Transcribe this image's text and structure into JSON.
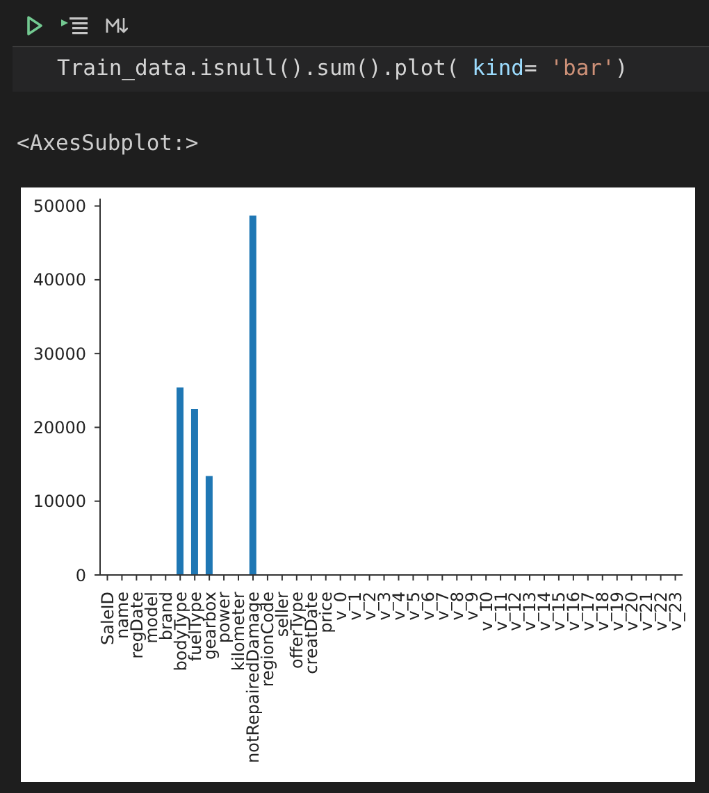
{
  "chart_data": {
    "type": "bar",
    "categories": [
      "SaleID",
      "name",
      "regDate",
      "model",
      "brand",
      "bodyType",
      "fuelType",
      "gearbox",
      "power",
      "kilometer",
      "notRepairedDamage",
      "regionCode",
      "seller",
      "offerType",
      "creatDate",
      "price",
      "v_0",
      "v_1",
      "v_2",
      "v_3",
      "v_4",
      "v_5",
      "v_6",
      "v_7",
      "v_8",
      "v_9",
      "v_10",
      "v_11",
      "v_12",
      "v_13",
      "v_14",
      "v_15",
      "v_16",
      "v_17",
      "v_18",
      "v_19",
      "v_20",
      "v_21",
      "v_22",
      "v_23"
    ],
    "values": [
      0,
      0,
      0,
      0,
      0,
      25400,
      22500,
      13400,
      0,
      0,
      48700,
      0,
      0,
      0,
      0,
      0,
      0,
      0,
      0,
      0,
      0,
      0,
      0,
      0,
      0,
      0,
      0,
      0,
      0,
      0,
      0,
      0,
      0,
      0,
      0,
      0,
      0,
      0,
      0,
      0
    ],
    "color": "#1f77b4",
    "ylim": [
      0,
      51000
    ],
    "yticks": [
      0,
      10000,
      20000,
      30000,
      40000,
      50000
    ],
    "annotations": [
      "Train_data.isnull().sum().plot( kind= 'bar')",
      "<AxesSubplot:>"
    ]
  }
}
